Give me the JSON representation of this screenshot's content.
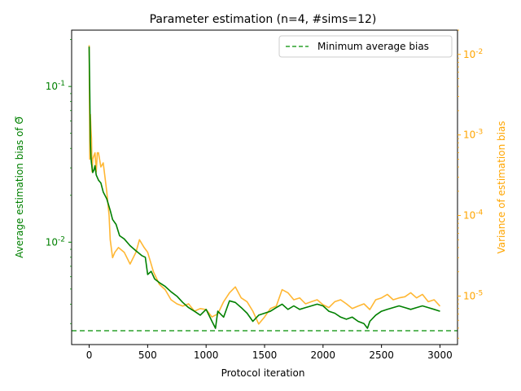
{
  "chart_data": {
    "type": "line",
    "title": "Parameter estimation (n=4, #sims=12)",
    "xlabel": "Protocol iteration",
    "ylabel_left": "Average estimation bias of Θ̅",
    "ylabel_right": "Variance of estimation bias",
    "xlim": [
      -150,
      3150
    ],
    "ylim_left": [
      0.0022,
      0.23
    ],
    "ylim_right": [
      2.5e-06,
      0.02
    ],
    "yscale_left": "log",
    "yscale_right": "log",
    "x_ticks": [
      0,
      500,
      1000,
      1500,
      2000,
      2500,
      3000
    ],
    "x_tick_labels": [
      "0",
      "500",
      "1000",
      "1500",
      "2000",
      "2500",
      "3000"
    ],
    "y_left_ticks": [
      0.01,
      0.1
    ],
    "y_left_tick_labels": [
      "10^-2",
      "10^-1"
    ],
    "y_right_ticks": [
      1e-05,
      0.0001,
      0.001,
      0.01
    ],
    "y_right_tick_labels": [
      "10^-5",
      "10^-4",
      "10^-3",
      "10^-2"
    ],
    "grid": false,
    "legend_position": "top-right",
    "colors": {
      "bias": "#008000",
      "variance": "#ffa500",
      "min_bias": "#2ca02c",
      "left_axis": "#008000",
      "right_axis": "#ffa500"
    },
    "series": [
      {
        "axis": "left",
        "x": [
          0,
          5,
          10,
          15,
          20,
          30,
          40,
          50,
          60,
          80,
          100,
          120,
          150,
          180,
          200,
          230,
          260,
          300,
          350,
          400,
          450,
          480,
          500,
          530,
          560,
          600,
          650,
          700,
          750,
          800,
          850,
          900,
          950,
          1000,
          1050,
          1080,
          1100,
          1150,
          1200,
          1250,
          1300,
          1350,
          1400,
          1450,
          1500,
          1550,
          1600,
          1650,
          1700,
          1750,
          1800,
          1850,
          1900,
          1950,
          2000,
          2050,
          2100,
          2150,
          2200,
          2250,
          2300,
          2350,
          2380,
          2400,
          2450,
          2500,
          2550,
          2600,
          2650,
          2700,
          2750,
          2800,
          2850,
          2900,
          2950,
          3000
        ],
        "values": [
          0.18,
          0.09,
          0.045,
          0.035,
          0.032,
          0.028,
          0.029,
          0.031,
          0.027,
          0.025,
          0.024,
          0.021,
          0.019,
          0.016,
          0.014,
          0.013,
          0.011,
          0.0105,
          0.0095,
          0.0088,
          0.0082,
          0.008,
          0.0062,
          0.0065,
          0.0058,
          0.0055,
          0.0052,
          0.0048,
          0.0045,
          0.0041,
          0.0038,
          0.0036,
          0.0034,
          0.0037,
          0.0031,
          0.0028,
          0.0036,
          0.0033,
          0.0042,
          0.0041,
          0.0038,
          0.0035,
          0.0031,
          0.0034,
          0.0035,
          0.0036,
          0.0038,
          0.004,
          0.0037,
          0.0039,
          0.0037,
          0.0038,
          0.0039,
          0.004,
          0.0039,
          0.0036,
          0.0035,
          0.0033,
          0.0032,
          0.0033,
          0.0031,
          0.003,
          0.0028,
          0.0031,
          0.0034,
          0.0036,
          0.0037,
          0.0038,
          0.0039,
          0.0038,
          0.0037,
          0.0038,
          0.0039,
          0.0038,
          0.0037,
          0.0036
        ]
      },
      {
        "axis": "right",
        "x": [
          0,
          5,
          10,
          15,
          20,
          25,
          30,
          40,
          50,
          60,
          70,
          80,
          100,
          120,
          150,
          170,
          180,
          200,
          220,
          250,
          300,
          350,
          400,
          430,
          470,
          500,
          520,
          550,
          600,
          650,
          700,
          750,
          800,
          850,
          900,
          950,
          1000,
          1050,
          1100,
          1150,
          1200,
          1250,
          1300,
          1350,
          1400,
          1450,
          1500,
          1550,
          1600,
          1650,
          1700,
          1750,
          1800,
          1850,
          1900,
          1950,
          2000,
          2050,
          2100,
          2150,
          2200,
          2250,
          2300,
          2350,
          2400,
          2450,
          2500,
          2550,
          2600,
          2650,
          2700,
          2750,
          2800,
          2850,
          2900,
          2950,
          3000
        ],
        "values": [
          0.013,
          0.0005,
          0.0018,
          0.0012,
          0.0009,
          0.00035,
          0.0005,
          0.00055,
          0.0006,
          0.00035,
          0.0006,
          0.0006,
          0.0004,
          0.00045,
          0.0002,
          0.0001,
          5e-05,
          3e-05,
          3.5e-05,
          4e-05,
          3.5e-05,
          2.5e-05,
          3.5e-05,
          5e-05,
          4e-05,
          3.5e-05,
          2.8e-05,
          2e-05,
          1.4e-05,
          1.2e-05,
          9e-06,
          8e-06,
          7.5e-06,
          8e-06,
          6.5e-06,
          7e-06,
          6.8e-06,
          5.5e-06,
          6e-06,
          8.5e-06,
          1.1e-05,
          1.3e-05,
          9.5e-06,
          8.5e-06,
          6.5e-06,
          4.5e-06,
          5.5e-06,
          7e-06,
          7.5e-06,
          1.2e-05,
          1.1e-05,
          9e-06,
          9.5e-06,
          8e-06,
          8.5e-06,
          9e-06,
          7.8e-06,
          7.2e-06,
          8.5e-06,
          9e-06,
          8e-06,
          7e-06,
          7.5e-06,
          8e-06,
          6.8e-06,
          9e-06,
          9.5e-06,
          1.05e-05,
          9e-06,
          9.5e-06,
          9.8e-06,
          1.1e-05,
          9.5e-06,
          1.05e-05,
          8.5e-06,
          9e-06,
          7.5e-06
        ]
      },
      {
        "axis": "left",
        "name": "Minimum average bias",
        "style": "dashed",
        "x": [
          -150,
          3150
        ],
        "values": [
          0.0027,
          0.0027
        ]
      }
    ]
  }
}
